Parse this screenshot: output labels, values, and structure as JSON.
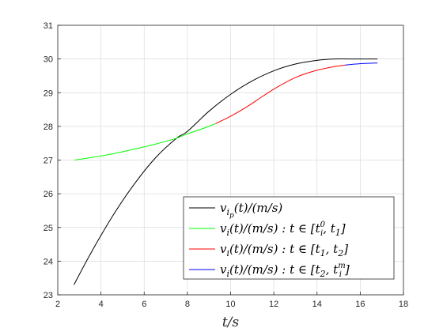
{
  "chart_data": {
    "type": "line",
    "xlabel": "t/s",
    "ylabel": "",
    "title": "",
    "xlim": [
      2,
      18
    ],
    "ylim": [
      23,
      31
    ],
    "xticks": [
      2,
      4,
      6,
      8,
      10,
      12,
      14,
      16,
      18
    ],
    "yticks": [
      23,
      24,
      25,
      26,
      27,
      28,
      29,
      30,
      31
    ],
    "grid": true,
    "legend_position": "bottom-right",
    "series": [
      {
        "name": "v_{i_p}(t)/(m/s)",
        "color": "#000000",
        "x": [
          2.75,
          3.5,
          4.5,
          5.5,
          6.5,
          7.5,
          8.0,
          9.0,
          10.0,
          11.0,
          12.0,
          13.0,
          14.0,
          14.8,
          15.5,
          16.8
        ],
        "y": [
          23.3,
          24.2,
          25.3,
          26.25,
          27.05,
          27.65,
          27.85,
          28.45,
          28.95,
          29.35,
          29.65,
          29.85,
          29.96,
          30.0,
          30.0,
          30.0
        ]
      },
      {
        "name": "v_i(t)/(m/s): t∈[t_i^0, t_1]",
        "color": "#00ff00",
        "x": [
          2.75,
          3.5,
          4.5,
          5.5,
          6.5,
          7.5,
          8.0,
          8.7,
          9.3
        ],
        "y": [
          27.0,
          27.07,
          27.18,
          27.32,
          27.47,
          27.65,
          27.78,
          27.93,
          28.08
        ]
      },
      {
        "name": "v_i(t)/(m/s): t∈[t_1, t_2]",
        "color": "#ff0000",
        "x": [
          9.3,
          10.0,
          10.8,
          11.5,
          12.2,
          13.0,
          13.8,
          14.6,
          15.3
        ],
        "y": [
          28.08,
          28.3,
          28.6,
          28.9,
          29.18,
          29.45,
          29.63,
          29.75,
          29.82
        ]
      },
      {
        "name": "v_i(t)/(m/s): t∈[t_2, t_i^m]",
        "color": "#0000ff",
        "x": [
          15.3,
          15.8,
          16.3,
          16.8
        ],
        "y": [
          29.82,
          29.85,
          29.87,
          29.88
        ]
      }
    ]
  }
}
